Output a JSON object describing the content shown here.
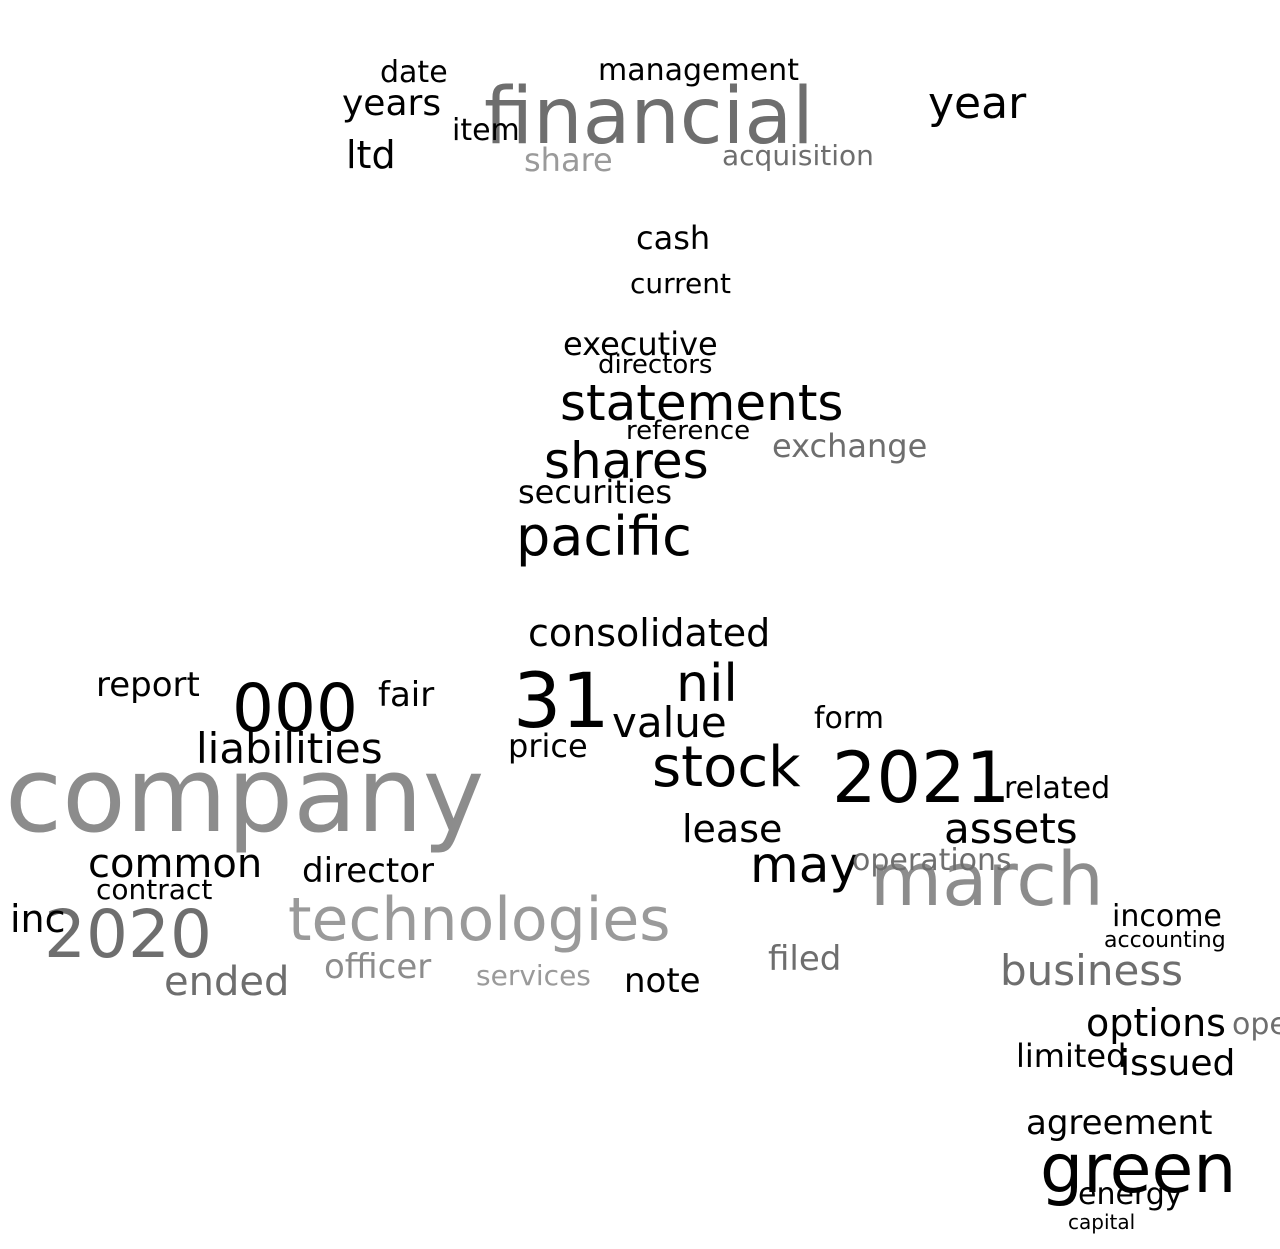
{
  "cloud": {
    "word_1": "company",
    "word_2": "financial",
    "word_3": "march",
    "word_4": "2021",
    "word_5": "technologies",
    "word_6": "31",
    "word_7": "000",
    "word_8": "2020",
    "word_9": "green",
    "word_10": "stock",
    "word_11": "statements",
    "word_12": "shares",
    "word_13": "pacific",
    "word_14": "nil",
    "word_15": "may",
    "word_16": "business",
    "word_17": "liabilities",
    "word_18": "assets",
    "word_19": "value",
    "word_20": "consolidated",
    "word_21": "common",
    "word_22": "ended",
    "word_23": "year",
    "word_24": "lease",
    "word_25": "options",
    "word_26": "management",
    "word_27": "executive",
    "word_28": "securities",
    "word_29": "agreement",
    "word_30": "issued",
    "word_31": "years",
    "word_32": "cash",
    "word_33": "director",
    "word_34": "officer",
    "word_35": "report",
    "word_36": "contract",
    "word_37": "income",
    "word_38": "limited",
    "word_39": "energy",
    "word_40": "operating",
    "word_41": "note",
    "word_42": "filed",
    "word_43": "price",
    "word_44": "exchange",
    "word_45": "acquisition",
    "word_46": "share",
    "word_47": "operations",
    "word_48": "directors",
    "word_49": "current",
    "word_50": "related",
    "word_51": "form",
    "word_52": "fair",
    "word_53": "services",
    "word_54": "inc",
    "word_55": "ltd",
    "word_56": "date",
    "word_57": "item",
    "word_58": "reference",
    "word_59": "accounting",
    "word_60": "capital"
  }
}
